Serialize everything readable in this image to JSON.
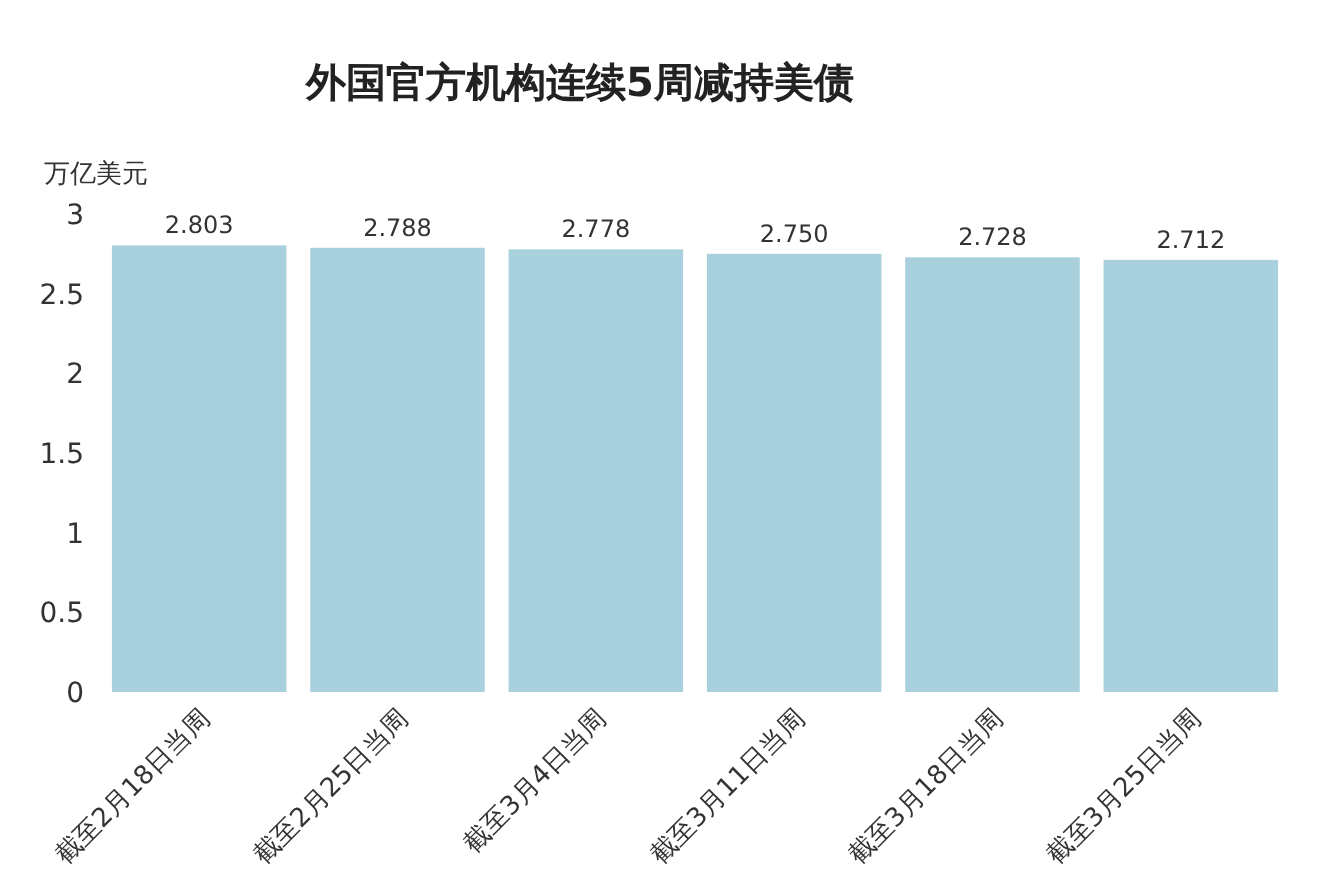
{
  "chart_data": {
    "type": "bar",
    "title": "外国官方机构连续5周减持美债",
    "ylabel": "万亿美元",
    "categories": [
      "截至2月18日当周",
      "截至2月25日当周",
      "截至3月4日当周",
      "截至3月11日当周",
      "截至3月18日当周",
      "截至3月25日当周"
    ],
    "values": [
      2.803,
      2.788,
      2.778,
      2.75,
      2.728,
      2.712
    ],
    "value_labels": [
      "2.803",
      "2.788",
      "2.778",
      "2.750",
      "2.728",
      "2.712"
    ],
    "color": "#a9d1dd",
    "ylim": [
      0,
      3
    ],
    "yticks": [
      0,
      0.5,
      1,
      1.5,
      2,
      2.5,
      3
    ]
  }
}
